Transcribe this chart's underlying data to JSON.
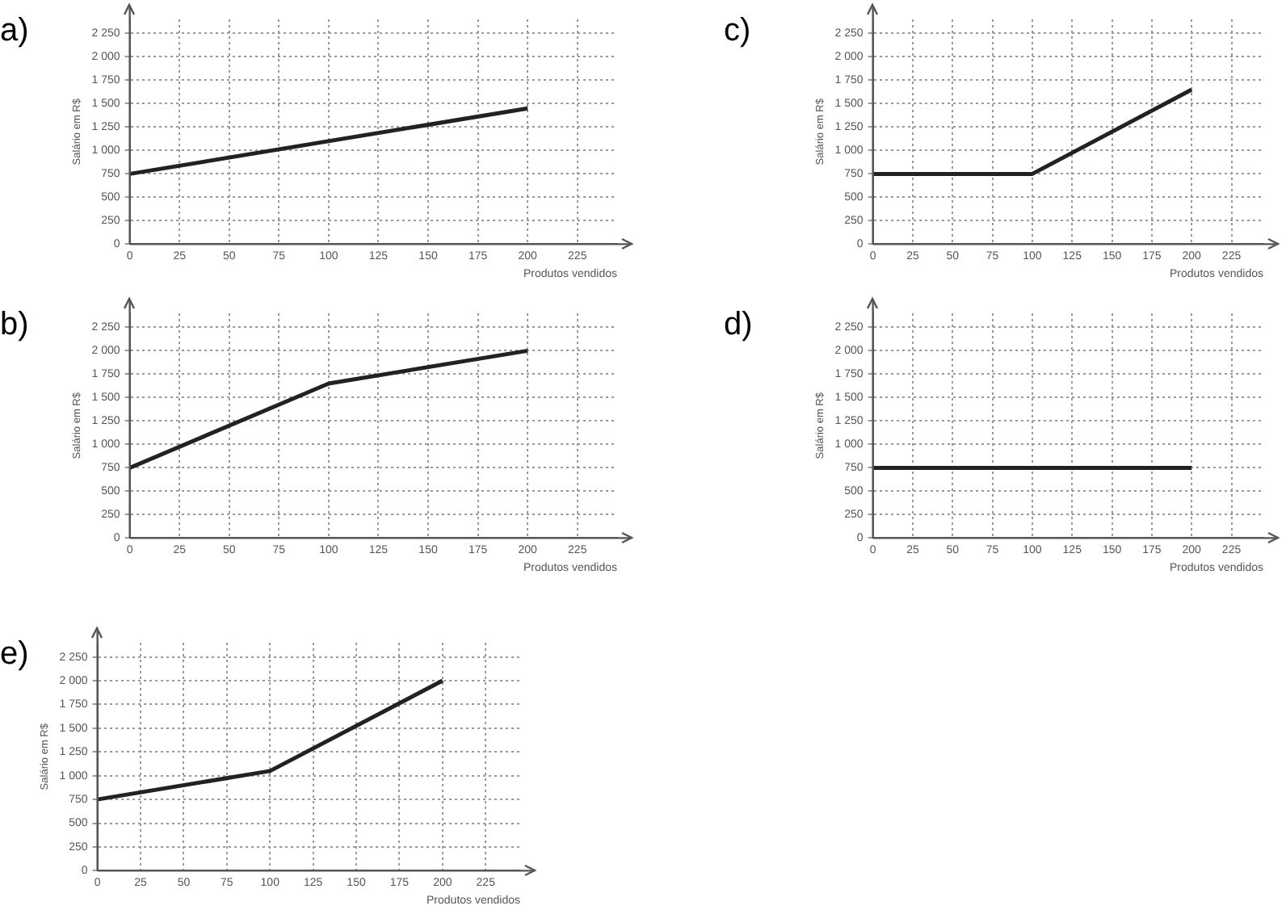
{
  "chart_data": [
    {
      "type": "line",
      "title": "a)",
      "xlabel": "Produtos vendidos",
      "ylabel": "Salário em R$",
      "x": [
        0,
        200
      ],
      "series": [
        {
          "color": "#222222",
          "values": [
            750,
            1450
          ]
        }
      ],
      "xlim": [
        0,
        245
      ],
      "xticks": [
        0,
        25,
        50,
        75,
        100,
        125,
        150,
        175,
        200,
        225
      ],
      "ylim": [
        0,
        2400
      ],
      "yticks": [
        0,
        250,
        500,
        750,
        {
          "value": 1000,
          "label": "1 000"
        },
        {
          "value": 1250,
          "label": "1 250"
        },
        {
          "value": 1500,
          "label": "1 500"
        },
        {
          "value": 1750,
          "label": "1 750"
        },
        {
          "value": 2000,
          "label": "2 000"
        },
        {
          "value": 2250,
          "label": "2 250"
        }
      ],
      "grid": true,
      "marker": "none"
    },
    {
      "type": "line",
      "title": "c)",
      "xlabel": "Produtos vendidos",
      "ylabel": "Salário em R$",
      "x": [
        0,
        100,
        200
      ],
      "series": [
        {
          "color": "#222222",
          "values": [
            750,
            750,
            1650
          ]
        }
      ],
      "xlim": [
        0,
        245
      ],
      "xticks": [
        0,
        25,
        50,
        75,
        100,
        125,
        150,
        175,
        200,
        225
      ],
      "ylim": [
        0,
        2400
      ],
      "yticks": [
        0,
        250,
        500,
        750,
        {
          "value": 1000,
          "label": "1 000"
        },
        {
          "value": 1250,
          "label": "1 250"
        },
        {
          "value": 1500,
          "label": "1 500"
        },
        {
          "value": 1750,
          "label": "1 750"
        },
        {
          "value": 2000,
          "label": "2 000"
        },
        {
          "value": 2250,
          "label": "2 250"
        }
      ],
      "grid": true,
      "marker": "none"
    },
    {
      "type": "line",
      "title": "b)",
      "xlabel": "Produtos vendidos",
      "ylabel": "Salário em R$",
      "x": [
        0,
        100,
        200
      ],
      "series": [
        {
          "color": "#222222",
          "values": [
            750,
            1650,
            2000
          ]
        }
      ],
      "xlim": [
        0,
        245
      ],
      "xticks": [
        0,
        25,
        50,
        75,
        100,
        125,
        150,
        175,
        200,
        225
      ],
      "ylim": [
        0,
        2400
      ],
      "yticks": [
        0,
        250,
        500,
        750,
        {
          "value": 1000,
          "label": "1 000"
        },
        {
          "value": 1250,
          "label": "1 250"
        },
        {
          "value": 1500,
          "label": "1 500"
        },
        {
          "value": 1750,
          "label": "1 750"
        },
        {
          "value": 2000,
          "label": "2 000"
        },
        {
          "value": 2250,
          "label": "2 250"
        }
      ],
      "grid": true,
      "marker": "none"
    },
    {
      "type": "line",
      "title": "d)",
      "xlabel": "Produtos vendidos",
      "ylabel": "Salário em R$",
      "x": [
        0,
        200
      ],
      "series": [
        {
          "color": "#222222",
          "values": [
            750,
            750
          ]
        }
      ],
      "xlim": [
        0,
        245
      ],
      "xticks": [
        0,
        25,
        50,
        75,
        100,
        125,
        150,
        175,
        200,
        225
      ],
      "ylim": [
        0,
        2400
      ],
      "yticks": [
        0,
        250,
        500,
        750,
        {
          "value": 1000,
          "label": "1 000"
        },
        {
          "value": 1250,
          "label": "1 250"
        },
        {
          "value": 1500,
          "label": "1 500"
        },
        {
          "value": 1750,
          "label": "1 750"
        },
        {
          "value": 2000,
          "label": "2 000"
        },
        {
          "value": 2250,
          "label": "2 250"
        }
      ],
      "grid": true,
      "marker": "none"
    },
    {
      "type": "line",
      "title": "e)",
      "xlabel": "Produtos vendidos",
      "ylabel": "Salário em R$",
      "x": [
        0,
        100,
        200
      ],
      "series": [
        {
          "color": "#222222",
          "values": [
            750,
            1050,
            2000
          ]
        }
      ],
      "xlim": [
        0,
        245
      ],
      "xticks": [
        0,
        25,
        50,
        75,
        100,
        125,
        150,
        175,
        200,
        225
      ],
      "ylim": [
        0,
        2400
      ],
      "yticks": [
        0,
        250,
        500,
        750,
        {
          "value": 1000,
          "label": "1 000"
        },
        {
          "value": 1250,
          "label": "1 250"
        },
        {
          "value": 1500,
          "label": "1 500"
        },
        {
          "value": 1750,
          "label": "1 750"
        },
        {
          "value": 2000,
          "label": "2 000"
        },
        {
          "value": 2250,
          "label": "2 250"
        }
      ],
      "grid": true,
      "marker": "none"
    }
  ]
}
